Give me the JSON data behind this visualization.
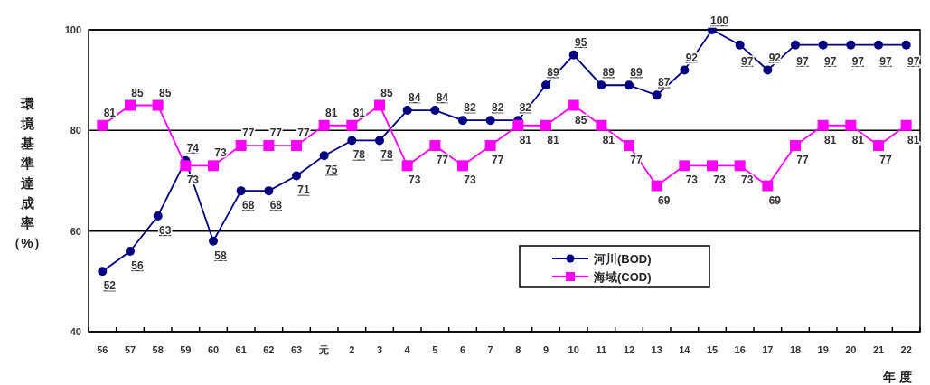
{
  "chart_data": {
    "type": "line",
    "ylabel": "環境基準達成率（%）",
    "xlabel": "年　度",
    "categories": [
      "56",
      "57",
      "58",
      "59",
      "60",
      "61",
      "62",
      "63",
      "元",
      "2",
      "3",
      "4",
      "5",
      "6",
      "7",
      "8",
      "9",
      "10",
      "11",
      "12",
      "13",
      "14",
      "15",
      "16",
      "17",
      "18",
      "19",
      "20",
      "21",
      "22"
    ],
    "series": [
      {
        "name": "河川(BOD)",
        "color": "#000080",
        "marker": "circle",
        "values": [
          52,
          56,
          63,
          74,
          58,
          68,
          68,
          71,
          75,
          78,
          78,
          84,
          84,
          82,
          82,
          82,
          89,
          95,
          89,
          89,
          87,
          92,
          100,
          97,
          92,
          97,
          97,
          97,
          97,
          97
        ]
      },
      {
        "name": "海域(COD)",
        "color": "#ff00ff",
        "marker": "square",
        "values": [
          81,
          85,
          85,
          73,
          73,
          77,
          77,
          77,
          81,
          81,
          85,
          73,
          77,
          73,
          77,
          81,
          81,
          85,
          81,
          77,
          69,
          73,
          73,
          73,
          69,
          77,
          81,
          81,
          77,
          81
        ]
      }
    ],
    "ylim": [
      40,
      100
    ],
    "yticks": [
      40,
      60,
      80,
      100
    ],
    "grid": "y",
    "legend": "bottom",
    "data_labels": true
  }
}
